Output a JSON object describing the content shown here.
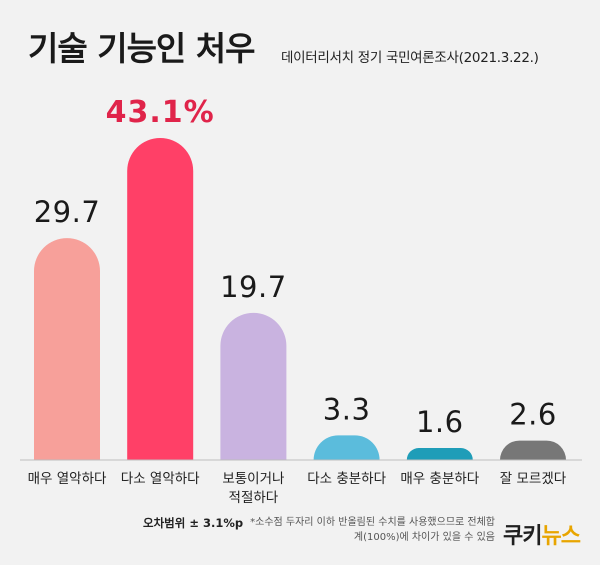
{
  "header": {
    "title": "기술 기능인 처우",
    "subtitle": "데이터리서치 정기 국민여론조사(2021.3.22.)"
  },
  "chart_data": {
    "type": "bar",
    "categories": [
      "매우 열악하다",
      "다소 열악하다",
      "보통이거나\n적절하다",
      "다소 충분하다",
      "매우 충분하다",
      "잘 모르겠다"
    ],
    "values": [
      29.7,
      43.1,
      19.7,
      3.3,
      1.6,
      2.6
    ],
    "value_labels": [
      "29.7",
      "43.1%",
      "19.7",
      "3.3",
      "1.6",
      "2.6"
    ],
    "colors": [
      "#f7a09a",
      "#ff4067",
      "#c9b3e0",
      "#5bbcdc",
      "#1f9db8",
      "#777777"
    ],
    "highlight_index": 1,
    "highlight_color": "#e0244a",
    "ylim": [
      0,
      45
    ],
    "grid": false,
    "legend": "none"
  },
  "footer": {
    "margin_of_error": "오차범위 ± 3.1%p",
    "note": "*소수점 두자리 이하 반올림된 수치를 사용했으므로 전체합계(100%)에 차이가 있을 수 있음",
    "logo_part1": "쿠키",
    "logo_part2": "뉴스"
  }
}
